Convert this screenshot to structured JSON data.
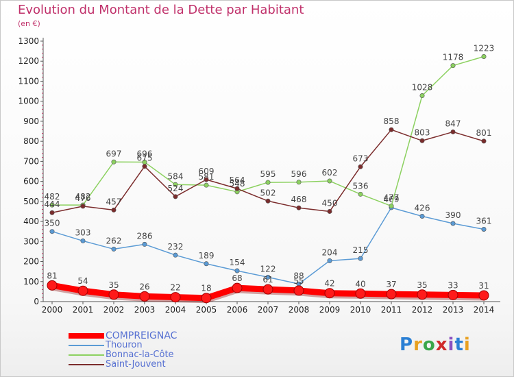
{
  "header": {
    "title": "Evolution du Montant de la Dette par Habitant",
    "subtitle": "(en €)"
  },
  "brand": {
    "letters": [
      "P",
      "r",
      "o",
      "x",
      "i",
      "t",
      "i"
    ],
    "colors": [
      "#2a7fd4",
      "#e8a020",
      "#3aa64a",
      "#d02a2a",
      "#8a4fc0",
      "#2a7fd4",
      "#e8a020"
    ]
  },
  "chart_data": {
    "type": "line",
    "x": [
      2000,
      2001,
      2002,
      2003,
      2004,
      2005,
      2006,
      2007,
      2008,
      2009,
      2010,
      2011,
      2012,
      2013,
      2014
    ],
    "ylim": [
      0,
      1300
    ],
    "yticks": [
      0,
      100,
      200,
      300,
      400,
      500,
      600,
      700,
      800,
      900,
      1000,
      1100,
      1200,
      1300
    ],
    "grid": false,
    "legend_position": "bottom-left",
    "series": [
      {
        "name": "COMPREIGNAC",
        "color": "#ff0000",
        "values": [
          81,
          54,
          35,
          26,
          22,
          18,
          68,
          61,
          55,
          42,
          40,
          37,
          35,
          33,
          31
        ]
      },
      {
        "name": "Thouron",
        "color": "#5b9bd5",
        "values": [
          350,
          303,
          262,
          286,
          232,
          189,
          154,
          122,
          88,
          204,
          215,
          469,
          426,
          390,
          361
        ]
      },
      {
        "name": "Bonnac-la-Côte",
        "color": "#8cd160",
        "values": [
          482,
          482,
          697,
          696,
          584,
          581,
          548,
          595,
          596,
          602,
          536,
          477,
          1028,
          1178,
          1223
        ]
      },
      {
        "name": "Saint-Jouvent",
        "color": "#7b2c2c",
        "values": [
          444,
          476,
          457,
          675,
          524,
          609,
          564,
          502,
          468,
          450,
          673,
          858,
          803,
          847,
          801
        ]
      }
    ]
  }
}
